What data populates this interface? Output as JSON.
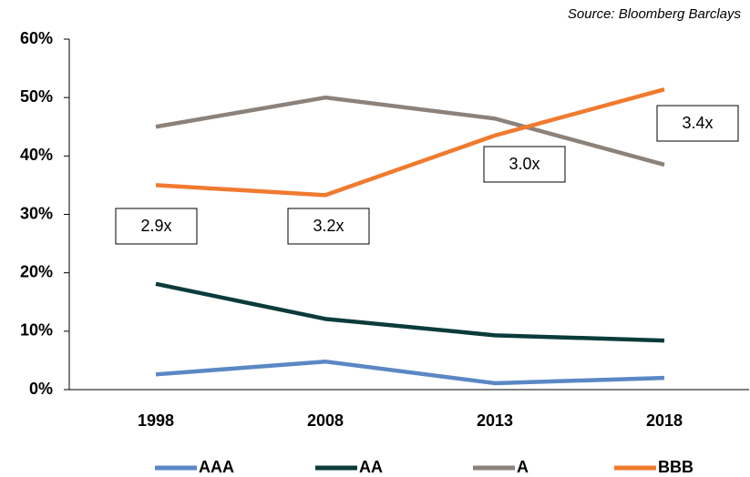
{
  "chart_data": {
    "type": "line",
    "source": "Source:  Bloomberg Barclays",
    "categories": [
      "1998",
      "2008",
      "2013",
      "2018"
    ],
    "series": [
      {
        "name": "AAA",
        "color": "#5b87c5",
        "values": [
          2.6,
          4.8,
          1.1,
          2.0
        ]
      },
      {
        "name": "AA",
        "color": "#0b3b3b",
        "values": [
          18.1,
          12.1,
          9.3,
          8.4
        ]
      },
      {
        "name": "A",
        "color": "#8c8279",
        "values": [
          45.0,
          50.0,
          46.4,
          38.5
        ]
      },
      {
        "name": "BBB",
        "color": "#f07a2e",
        "values": [
          35.0,
          33.3,
          43.5,
          51.4
        ]
      }
    ],
    "ylim": [
      0,
      60
    ],
    "yticks": [
      {
        "value": 0,
        "label": "0%"
      },
      {
        "value": 10,
        "label": "10%"
      },
      {
        "value": 20,
        "label": "20%"
      },
      {
        "value": 30,
        "label": "30%"
      },
      {
        "value": 40,
        "label": "40%"
      },
      {
        "value": 50,
        "label": "50%"
      },
      {
        "value": 60,
        "label": "60%"
      }
    ],
    "annotations": [
      "2.9x",
      "3.2x",
      "3.0x",
      "3.4x"
    ],
    "legend": "bottom"
  }
}
